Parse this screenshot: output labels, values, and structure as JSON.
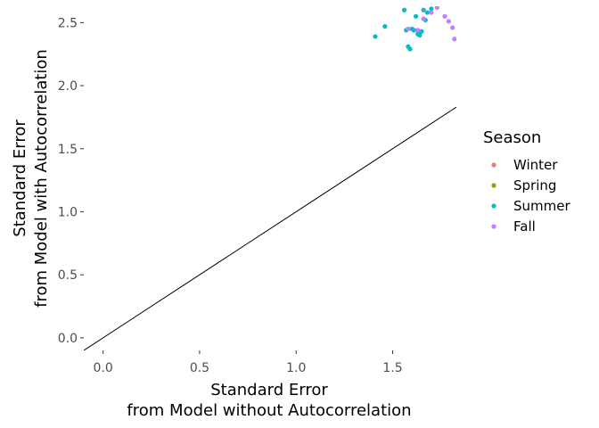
{
  "chart_data": {
    "type": "scatter",
    "title": "",
    "xlabel": [
      "Standard Error",
      "from Model without Autocorrelation"
    ],
    "ylabel": [
      "Standard Error",
      "from Model with Autocorrelation"
    ],
    "xlim": [
      -0.1,
      1.83
    ],
    "ylim": [
      -0.1,
      2.63
    ],
    "x_ticks": [
      0.0,
      0.5,
      1.0,
      1.5
    ],
    "x_tick_labels": [
      "0.0",
      "0.5",
      "1.0",
      "1.5"
    ],
    "y_ticks": [
      0.0,
      0.5,
      1.0,
      1.5,
      2.0,
      2.5
    ],
    "y_tick_labels": [
      "0.0",
      "0.5",
      "1.0",
      "1.5",
      "2.0",
      "2.5"
    ],
    "grid": false,
    "reference_line": {
      "slope": 1,
      "intercept": 0,
      "color": "#000000"
    },
    "legend": {
      "title": "Season",
      "placement": "right",
      "entries": [
        {
          "name": "Winter",
          "color": "#F8766D"
        },
        {
          "name": "Spring",
          "color": "#7CAE00"
        },
        {
          "name": "Summer",
          "color": "#00BFC4"
        },
        {
          "name": "Fall",
          "color": "#C77CFF"
        }
      ]
    },
    "series": [
      {
        "name": "Winter",
        "color": "#F8766D",
        "points": []
      },
      {
        "name": "Spring",
        "color": "#7CAE00",
        "points": []
      },
      {
        "name": "Summer",
        "color": "#00BFC4",
        "points": [
          {
            "x": 1.41,
            "y": 2.39
          },
          {
            "x": 1.46,
            "y": 2.47
          },
          {
            "x": 1.56,
            "y": 2.6
          },
          {
            "x": 1.57,
            "y": 2.44
          },
          {
            "x": 1.58,
            "y": 2.31
          },
          {
            "x": 1.59,
            "y": 2.29
          },
          {
            "x": 1.6,
            "y": 2.45
          },
          {
            "x": 1.61,
            "y": 2.44
          },
          {
            "x": 1.63,
            "y": 2.41
          },
          {
            "x": 1.64,
            "y": 2.4
          },
          {
            "x": 1.66,
            "y": 2.6
          },
          {
            "x": 1.62,
            "y": 2.55
          },
          {
            "x": 1.65,
            "y": 2.43
          },
          {
            "x": 1.68,
            "y": 2.58
          },
          {
            "x": 1.7,
            "y": 2.61
          },
          {
            "x": 1.67,
            "y": 2.52
          }
        ]
      },
      {
        "name": "Fall",
        "color": "#C77CFF",
        "points": [
          {
            "x": 1.58,
            "y": 2.45
          },
          {
            "x": 1.63,
            "y": 2.44
          },
          {
            "x": 1.66,
            "y": 2.53
          },
          {
            "x": 1.7,
            "y": 2.58
          },
          {
            "x": 1.73,
            "y": 2.62
          },
          {
            "x": 1.77,
            "y": 2.55
          },
          {
            "x": 1.79,
            "y": 2.51
          },
          {
            "x": 1.81,
            "y": 2.46
          },
          {
            "x": 1.82,
            "y": 2.37
          }
        ]
      }
    ]
  }
}
